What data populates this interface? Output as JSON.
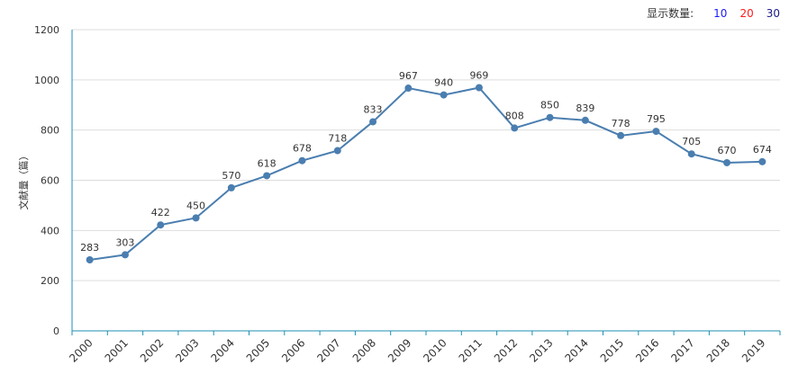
{
  "display_count": {
    "label": "显示数量:",
    "options": [
      {
        "text": "10",
        "color": "#1a1aff"
      },
      {
        "text": "20",
        "color": "#ff1a1a"
      },
      {
        "text": "30",
        "color": "#1a1a8a"
      }
    ]
  },
  "colors": {
    "line": "#4a7eb0",
    "axis": "#1f8fb0",
    "grid": "#dddddd",
    "text": "#333333"
  },
  "chart_data": {
    "type": "line",
    "ylabel": "文献量（篇）",
    "xlabel": "",
    "ylim": [
      0,
      1200
    ],
    "yticks": [
      0,
      200,
      400,
      600,
      800,
      1000,
      1200
    ],
    "grid": true,
    "x": [
      "2000",
      "2001",
      "2002",
      "2003",
      "2004",
      "2005",
      "2006",
      "2007",
      "2008",
      "2009",
      "2010",
      "2011",
      "2012",
      "2013",
      "2014",
      "2015",
      "2016",
      "2017",
      "2018",
      "2019"
    ],
    "series": [
      {
        "values": [
          283,
          303,
          422,
          450,
          570,
          618,
          678,
          718,
          833,
          967,
          940,
          969,
          808,
          850,
          839,
          778,
          795,
          705,
          670,
          674
        ]
      }
    ]
  }
}
